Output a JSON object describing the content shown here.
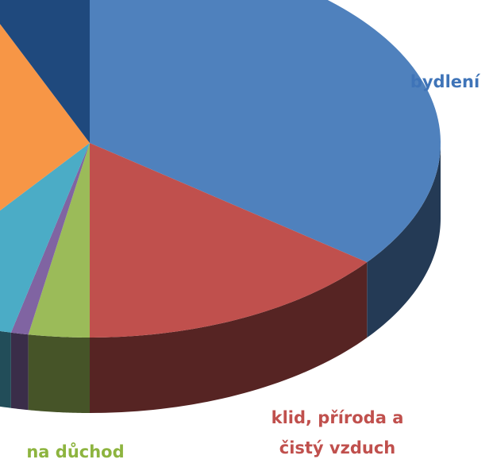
{
  "chart_data": {
    "type": "pie3d",
    "categories": [
      "bydlení",
      "klid, příroda a čistý vzduch",
      "na důchod",
      null,
      null,
      null,
      null
    ],
    "values": [
      35.5,
      14.5,
      2.8,
      0.8,
      6.5,
      33.6,
      6.3
    ],
    "colors": [
      "#4f81bd",
      "#c0504d",
      "#9bbb59",
      "#8064a2",
      "#4bacc6",
      "#f79646",
      "#1f497d"
    ],
    "label_colors": [
      "#3f74b8",
      "#c0504d",
      "#8db43f",
      null,
      null,
      null,
      null
    ]
  }
}
